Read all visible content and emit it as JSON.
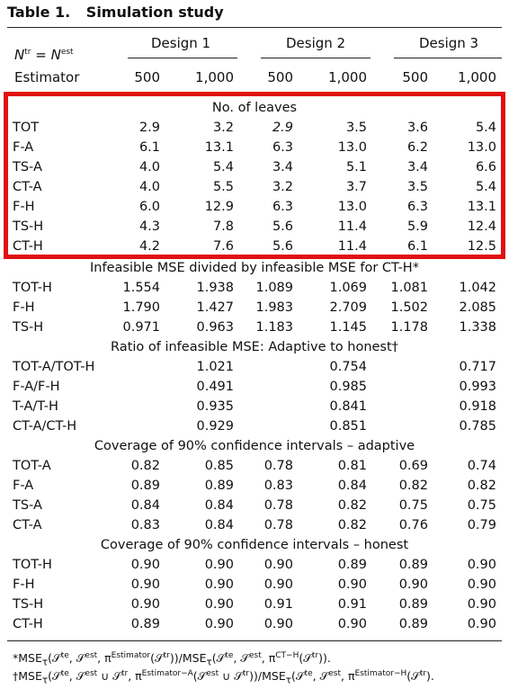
{
  "title": {
    "label": "Table 1.",
    "text": "Simulation study"
  },
  "header": {
    "ntr_row": "N",
    "estimator_label": "Estimator",
    "designs": [
      "Design 1",
      "Design 2",
      "Design 3"
    ],
    "sizes": [
      "500",
      "1,000",
      "500",
      "1,000",
      "500",
      "1,000"
    ]
  },
  "sections": [
    {
      "title": "No. of leaves",
      "rows": [
        {
          "label": "TOT",
          "values": [
            "2.9",
            "3.2",
            "2.9",
            "3.5",
            "3.6",
            "5.4"
          ]
        },
        {
          "label": "F-A",
          "values": [
            "6.1",
            "13.1",
            "6.3",
            "13.0",
            "6.2",
            "13.0"
          ]
        },
        {
          "label": "TS-A",
          "values": [
            "4.0",
            "5.4",
            "3.4",
            "5.1",
            "3.4",
            "6.6"
          ]
        },
        {
          "label": "CT-A",
          "values": [
            "4.0",
            "5.5",
            "3.2",
            "3.7",
            "3.5",
            "5.4"
          ]
        },
        {
          "label": "F-H",
          "values": [
            "6.0",
            "12.9",
            "6.3",
            "13.0",
            "6.3",
            "13.1"
          ]
        },
        {
          "label": "TS-H",
          "values": [
            "4.3",
            "7.8",
            "5.6",
            "11.4",
            "5.9",
            "12.4"
          ]
        },
        {
          "label": "CT-H",
          "values": [
            "4.2",
            "7.6",
            "5.6",
            "11.4",
            "6.1",
            "12.5"
          ]
        }
      ]
    },
    {
      "title": "Infeasible MSE divided by infeasible MSE for CT-H*",
      "rows": [
        {
          "label": "TOT-H",
          "values": [
            "1.554",
            "1.938",
            "1.089",
            "1.069",
            "1.081",
            "1.042"
          ]
        },
        {
          "label": "F-H",
          "values": [
            "1.790",
            "1.427",
            "1.983",
            "2.709",
            "1.502",
            "2.085"
          ]
        },
        {
          "label": "TS-H",
          "values": [
            "0.971",
            "0.963",
            "1.183",
            "1.145",
            "1.178",
            "1.338"
          ]
        }
      ]
    },
    {
      "title": "Ratio of infeasible MSE: Adaptive to honest†",
      "rows": [
        {
          "label": "TOT-A/TOT-H",
          "values": [
            "1.021",
            "0.754",
            "0.717"
          ]
        },
        {
          "label": "F-A/F-H",
          "values": [
            "0.491",
            "0.985",
            "0.993"
          ]
        },
        {
          "label": "T-A/T-H",
          "values": [
            "0.935",
            "0.841",
            "0.918"
          ]
        },
        {
          "label": "CT-A/CT-H",
          "values": [
            "0.929",
            "0.851",
            "0.785"
          ]
        }
      ]
    },
    {
      "title": "Coverage of 90% confidence intervals – adaptive",
      "rows": [
        {
          "label": "TOT-A",
          "values": [
            "0.82",
            "0.85",
            "0.78",
            "0.81",
            "0.69",
            "0.74"
          ]
        },
        {
          "label": "F-A",
          "values": [
            "0.89",
            "0.89",
            "0.83",
            "0.84",
            "0.82",
            "0.82"
          ]
        },
        {
          "label": "TS-A",
          "values": [
            "0.84",
            "0.84",
            "0.78",
            "0.82",
            "0.75",
            "0.75"
          ]
        },
        {
          "label": "CT-A",
          "values": [
            "0.83",
            "0.84",
            "0.78",
            "0.82",
            "0.76",
            "0.79"
          ]
        }
      ]
    },
    {
      "title": "Coverage of 90% confidence intervals – honest",
      "rows": [
        {
          "label": "TOT-H",
          "values": [
            "0.90",
            "0.90",
            "0.90",
            "0.89",
            "0.89",
            "0.90"
          ]
        },
        {
          "label": "F-H",
          "values": [
            "0.90",
            "0.90",
            "0.90",
            "0.90",
            "0.90",
            "0.90"
          ]
        },
        {
          "label": "TS-H",
          "values": [
            "0.90",
            "0.90",
            "0.91",
            "0.91",
            "0.89",
            "0.90"
          ]
        },
        {
          "label": "CT-H",
          "values": [
            "0.89",
            "0.90",
            "0.90",
            "0.90",
            "0.89",
            "0.90"
          ]
        }
      ]
    }
  ],
  "notes": {
    "note1": "*MSE",
    "note2": "†MSE"
  },
  "highlight_color": "#e01010"
}
